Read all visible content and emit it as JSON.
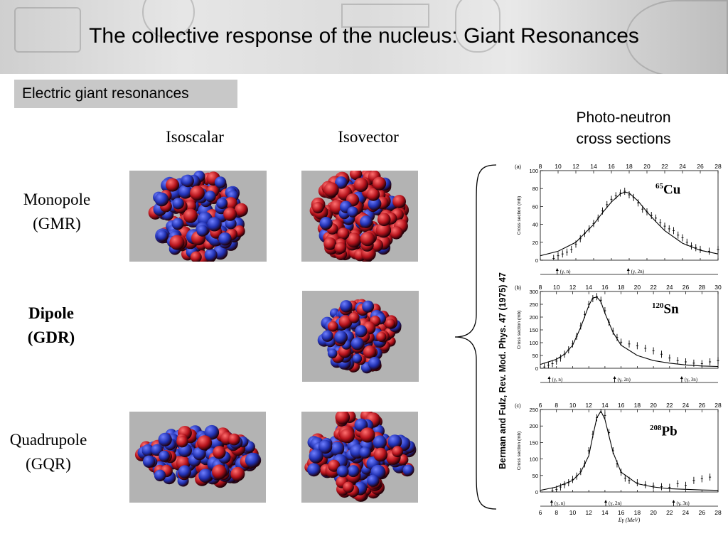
{
  "header": {
    "title": "The collective response of the nucleus: Giant Resonances"
  },
  "subtitle": "Electric giant resonances",
  "columns": {
    "isoscalar": "Isoscalar",
    "isovector": "Isovector"
  },
  "rows": {
    "monopole": {
      "name": "Monopole",
      "abbr": "(GMR)"
    },
    "dipole": {
      "name": "Dipole",
      "abbr": "(GDR)"
    },
    "quadrupole": {
      "name": "Quadrupole",
      "abbr": "(GQR)"
    }
  },
  "photo_header": {
    "line1": "Photo-neutron",
    "line2": "cross sections"
  },
  "citation": "Berman and Fulz, Rev. Mod. Phys. 47 (1975) 47",
  "colors": {
    "red": "#b5121b",
    "blue": "#1f2fb0",
    "panel": "#b3b3b3"
  },
  "chart_data": [
    {
      "type": "line",
      "panel_label": "(a)",
      "nuclide": {
        "mass": "65",
        "element": "Cu"
      },
      "x_ticks": [
        "8",
        "10",
        "12",
        "14",
        "16",
        "18",
        "20",
        "22",
        "24",
        "26",
        "28"
      ],
      "xlim": [
        8,
        28
      ],
      "y_ticks": [
        "0",
        "20",
        "40",
        "60",
        "80",
        "100"
      ],
      "ylim": [
        0,
        100
      ],
      "ylabel": "Cross section (mb)",
      "thresholds": [
        {
          "label": "(γ, n)",
          "x": 9.9
        },
        {
          "label": "(γ, 2n)",
          "x": 17.9
        }
      ],
      "curve": {
        "x": [
          8,
          10,
          12,
          14,
          15,
          16,
          17,
          17.5,
          18,
          19,
          20,
          21,
          22,
          24,
          26,
          28
        ],
        "y": [
          5,
          10,
          20,
          40,
          53,
          65,
          74,
          76,
          75,
          66,
          54,
          43,
          33,
          19,
          11,
          7
        ]
      },
      "points": {
        "x": [
          9.5,
          10,
          10.5,
          11,
          11.5,
          12,
          12.5,
          13,
          13.5,
          14,
          14.5,
          15,
          15.5,
          16,
          16.5,
          17,
          17.5,
          18,
          18.5,
          19,
          19.5,
          20,
          20.5,
          21,
          21.5,
          22,
          22.5,
          23,
          23.5,
          24,
          24.5,
          25,
          25.5,
          26,
          27,
          28
        ],
        "y": [
          2,
          5,
          7,
          9,
          12,
          18,
          24,
          30,
          35,
          41,
          47,
          55,
          62,
          68,
          72,
          75,
          77,
          73,
          70,
          64,
          57,
          54,
          50,
          47,
          42,
          38,
          35,
          33,
          28,
          25,
          20,
          16,
          14,
          12,
          10,
          12
        ]
      }
    },
    {
      "type": "line",
      "panel_label": "(b)",
      "nuclide": {
        "mass": "120",
        "element": "Sn"
      },
      "x_ticks": [
        "8",
        "10",
        "12",
        "14",
        "16",
        "18",
        "20",
        "22",
        "24",
        "26",
        "28",
        "30"
      ],
      "xlim": [
        8,
        30
      ],
      "y_ticks": [
        "0",
        "50",
        "100",
        "150",
        "200",
        "250",
        "300"
      ],
      "ylim": [
        0,
        300
      ],
      "ylabel": "Cross section (mb)",
      "thresholds": [
        {
          "label": "(γ, n)",
          "x": 9.1
        },
        {
          "label": "(γ, 2n)",
          "x": 17.2
        },
        {
          "label": "(γ, 3n)",
          "x": 25.5
        }
      ],
      "curve": {
        "x": [
          8,
          10,
          11,
          12,
          13,
          14,
          14.5,
          15,
          15.5,
          16,
          17,
          18,
          20,
          22,
          24,
          26,
          28,
          30
        ],
        "y": [
          15,
          35,
          55,
          90,
          160,
          245,
          275,
          278,
          260,
          215,
          140,
          90,
          50,
          30,
          20,
          13,
          9,
          7
        ]
      },
      "points": {
        "x": [
          8.5,
          9,
          9.5,
          10,
          10.5,
          11,
          11.5,
          12,
          12.5,
          13,
          13.5,
          14,
          14.5,
          15,
          15.5,
          16,
          16.5,
          17,
          17.5,
          18,
          19,
          20,
          21,
          22,
          23,
          24,
          25,
          26,
          27,
          28,
          29,
          30
        ],
        "y": [
          5,
          12,
          18,
          28,
          40,
          55,
          72,
          95,
          125,
          165,
          210,
          250,
          272,
          280,
          266,
          225,
          180,
          145,
          120,
          102,
          95,
          88,
          78,
          68,
          55,
          40,
          30,
          25,
          20,
          18,
          25,
          30
        ]
      }
    },
    {
      "type": "line",
      "panel_label": "(c)",
      "nuclide": {
        "mass": "208",
        "element": "Pb"
      },
      "x_ticks": [
        "6",
        "8",
        "10",
        "12",
        "14",
        "16",
        "18",
        "20",
        "22",
        "24",
        "26",
        "28"
      ],
      "xlim": [
        6,
        28
      ],
      "y_ticks": [
        "0",
        "50",
        "100",
        "150",
        "200",
        "250"
      ],
      "ylim": [
        0,
        250
      ],
      "xlabel": "Eγ (MeV)",
      "ylabel": "Cross section (mb)",
      "thresholds": [
        {
          "label": "(γ, n)",
          "x": 7.4
        },
        {
          "label": "(γ, 2n)",
          "x": 14.1
        },
        {
          "label": "(γ, 3n)",
          "x": 22.5
        }
      ],
      "curve": {
        "x": [
          6,
          8,
          10,
          11,
          12,
          12.5,
          13,
          13.5,
          14,
          14.5,
          15,
          16,
          18,
          20,
          22,
          24,
          26,
          28
        ],
        "y": [
          5,
          15,
          35,
          60,
          110,
          170,
          225,
          245,
          220,
          170,
          120,
          60,
          25,
          15,
          10,
          8,
          6,
          5
        ]
      },
      "points": {
        "x": [
          7.5,
          8,
          8.5,
          9,
          9.5,
          10,
          10.5,
          11,
          11.5,
          12,
          12.5,
          13,
          13.5,
          14,
          14.5,
          15,
          15.5,
          16,
          16.5,
          17,
          18,
          19,
          20,
          21,
          22,
          23,
          24,
          25,
          26,
          27
        ],
        "y": [
          3,
          8,
          15,
          22,
          28,
          38,
          48,
          62,
          85,
          125,
          175,
          225,
          250,
          232,
          180,
          125,
          85,
          60,
          42,
          35,
          28,
          22,
          18,
          16,
          14,
          25,
          20,
          35,
          40,
          45
        ]
      }
    }
  ]
}
